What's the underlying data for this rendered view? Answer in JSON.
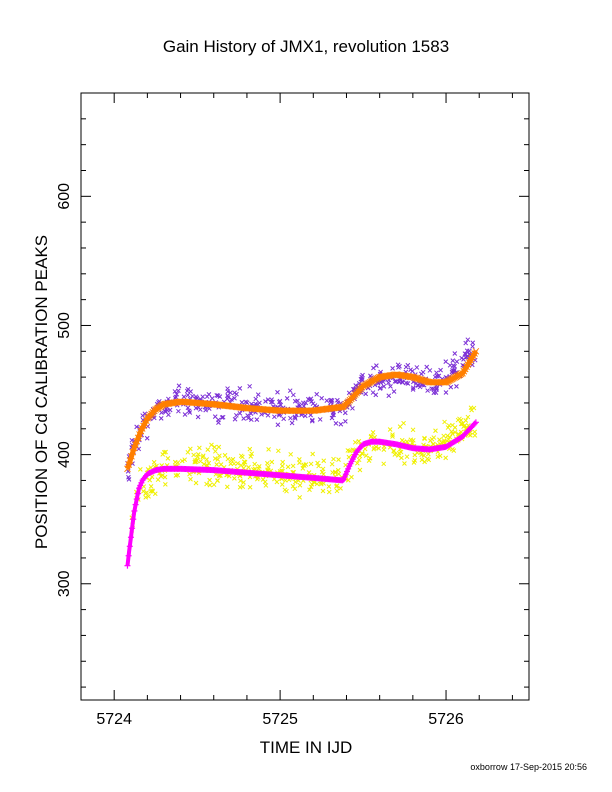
{
  "chart_data": {
    "type": "scatter",
    "title": "Gain History of JMX1, revolution 1583",
    "xlabel": "TIME IN IJD",
    "ylabel": "POSITION OF Cd CALIBRATION PEAKS",
    "xlim": [
      5723.8,
      5726.5
    ],
    "ylim": [
      210,
      680
    ],
    "x_major_ticks": [
      5724,
      5725,
      5726
    ],
    "x_tick_labels": [
      "5724",
      "5725",
      "5726"
    ],
    "x_minor_step": 0.2,
    "y_major_ticks": [
      300,
      400,
      500,
      600
    ],
    "y_tick_labels": [
      "300",
      "400",
      "500",
      "600"
    ],
    "y_minor_step": 20,
    "grid": false,
    "legend": "none",
    "credit": "oxborrow 17-Sep-2015 20:56",
    "series": [
      {
        "marker": "x",
        "color": "#7b2fd6",
        "x_range": [
          5724.08,
          5726.18
        ],
        "center": [
          [
            5724.08,
            390
          ],
          [
            5724.15,
            418
          ],
          [
            5724.25,
            435
          ],
          [
            5724.35,
            441
          ],
          [
            5724.6,
            439
          ],
          [
            5725.0,
            435
          ],
          [
            5725.38,
            437
          ],
          [
            5725.5,
            453
          ],
          [
            5725.7,
            463
          ],
          [
            5725.95,
            457
          ],
          [
            5726.18,
            480
          ]
        ],
        "spread": 11
      },
      {
        "marker": "x",
        "color": "#f0f000",
        "x_range": [
          5724.1,
          5726.18
        ],
        "center": [
          [
            5724.1,
            345
          ],
          [
            5724.16,
            372
          ],
          [
            5724.25,
            385
          ],
          [
            5724.4,
            390
          ],
          [
            5724.7,
            390
          ],
          [
            5725.0,
            385
          ],
          [
            5725.38,
            381
          ],
          [
            5725.45,
            400
          ],
          [
            5725.6,
            410
          ],
          [
            5725.9,
            405
          ],
          [
            5726.18,
            425
          ]
        ],
        "spread": 13
      },
      {
        "marker": "line-thick",
        "color": "#ff7f00",
        "x": [
          5724.08,
          5724.12,
          5724.16,
          5724.2,
          5724.25,
          5724.3,
          5724.4,
          5724.6,
          5724.8,
          5725.0,
          5725.2,
          5725.38,
          5725.42,
          5725.5,
          5725.6,
          5725.7,
          5725.8,
          5725.9,
          5726.0,
          5726.1,
          5726.18
        ],
        "y": [
          389,
          405,
          418,
          428,
          435,
          439,
          441,
          439,
          436,
          434,
          434,
          437,
          442,
          453,
          460,
          462,
          460,
          456,
          456,
          463,
          480
        ]
      },
      {
        "marker": "+",
        "color": "#ff00ff",
        "x": [
          5724.08,
          5724.09,
          5724.1,
          5724.11,
          5724.12,
          5724.13,
          5724.14,
          5724.15,
          5724.17,
          5724.2,
          5724.25,
          5724.3,
          5724.4,
          5724.6,
          5724.8,
          5725.0,
          5725.2,
          5725.38,
          5725.42,
          5725.46,
          5725.5,
          5725.55,
          5725.6,
          5725.7,
          5725.8,
          5725.9,
          5726.0,
          5726.1,
          5726.18
        ],
        "y": [
          314,
          325,
          335,
          345,
          355,
          362,
          368,
          374,
          380,
          385,
          388,
          389,
          389,
          388,
          386,
          384,
          382,
          380,
          392,
          402,
          408,
          410,
          410,
          408,
          405,
          404,
          406,
          414,
          425
        ]
      }
    ]
  }
}
